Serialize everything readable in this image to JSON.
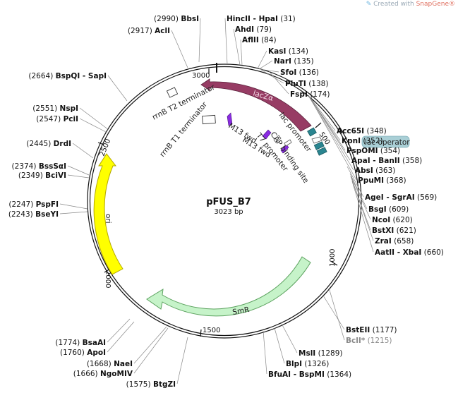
{
  "credit": {
    "prefix": "Created with",
    "brand": "SnapGene®"
  },
  "plasmid": {
    "name": "pFUS_B7",
    "size": "3023 bp"
  },
  "ticks": [
    "500",
    "1000",
    "1500",
    "2000",
    "2500",
    "3000"
  ],
  "features": {
    "lacZa": "lacZα",
    "ori": "ori",
    "smr": "SmR",
    "rrnb_t2": "rrnB T2 terminator",
    "rrnb_t1": "rrnB T1 terminator",
    "m13_fwd_1": "M13 fwd",
    "m13_fwd_2": "M13 fwd",
    "t7_promoter": "T7 promoter",
    "lac_promoter": "lac promoter",
    "cap_binding_site": "CAP binding site",
    "lac_operator": "lac operator"
  },
  "sites": [
    {
      "id": "bbsi",
      "name": "BbsI",
      "pos": "(2990)",
      "side": "left"
    },
    {
      "id": "acli",
      "name": "AclI",
      "pos": "(2917)",
      "side": "left"
    },
    {
      "id": "bspqi",
      "name": "BspQI - SapI",
      "pos": "(2664)",
      "side": "left"
    },
    {
      "id": "nspi",
      "name": "NspI",
      "pos": "(2551)",
      "side": "left"
    },
    {
      "id": "pcii",
      "name": "PciI",
      "pos": "(2547)",
      "side": "left"
    },
    {
      "id": "drdi",
      "name": "DrdI",
      "pos": "(2445)",
      "side": "left"
    },
    {
      "id": "bsssai",
      "name": "BssSαI",
      "pos": "(2374)",
      "side": "left"
    },
    {
      "id": "bcivi",
      "name": "BciVI",
      "pos": "(2349)",
      "side": "left"
    },
    {
      "id": "pspfi",
      "name": "PspFI",
      "pos": "(2247)",
      "side": "left"
    },
    {
      "id": "bseyi",
      "name": "BseYI",
      "pos": "(2243)",
      "side": "left"
    },
    {
      "id": "bsaai",
      "name": "BsaAI",
      "pos": "(1774)",
      "side": "left"
    },
    {
      "id": "apoi",
      "name": "ApoI",
      "pos": "(1760)",
      "side": "left"
    },
    {
      "id": "naei",
      "name": "NaeI",
      "pos": "(1668)",
      "side": "left"
    },
    {
      "id": "ngomiv",
      "name": "NgoMIV",
      "pos": "(1666)",
      "side": "left"
    },
    {
      "id": "btgzi",
      "name": "BtgZI",
      "pos": "(1575)",
      "side": "left"
    },
    {
      "id": "hincii",
      "name": "HincII - HpaI",
      "pos": "(31)",
      "side": "right"
    },
    {
      "id": "ahdi",
      "name": "AhdI",
      "pos": "(79)",
      "side": "right"
    },
    {
      "id": "aflii",
      "name": "AflII",
      "pos": "(84)",
      "side": "right"
    },
    {
      "id": "kasi",
      "name": "KasI",
      "pos": "(134)",
      "side": "right"
    },
    {
      "id": "nari",
      "name": "NarI",
      "pos": "(135)",
      "side": "right"
    },
    {
      "id": "sfoi",
      "name": "SfoI",
      "pos": "(136)",
      "side": "right"
    },
    {
      "id": "plutii",
      "name": "PluTI",
      "pos": "(138)",
      "side": "right"
    },
    {
      "id": "fspi",
      "name": "FspI",
      "pos": "(174)",
      "side": "right"
    },
    {
      "id": "acc65i",
      "name": "Acc65I",
      "pos": "(348)",
      "side": "right"
    },
    {
      "id": "kpni",
      "name": "KpnI",
      "pos": "(352)",
      "side": "right"
    },
    {
      "id": "pspomi",
      "name": "PspOMI",
      "pos": "(354)",
      "side": "right"
    },
    {
      "id": "apai",
      "name": "ApaI - BanII",
      "pos": "(358)",
      "side": "right"
    },
    {
      "id": "absi",
      "name": "AbsI",
      "pos": "(363)",
      "side": "right"
    },
    {
      "id": "ppumi",
      "name": "PpuMI",
      "pos": "(368)",
      "side": "right"
    },
    {
      "id": "agei",
      "name": "AgeI - SgrAI",
      "pos": "(569)",
      "side": "right"
    },
    {
      "id": "bsgi",
      "name": "BsgI",
      "pos": "(609)",
      "side": "right"
    },
    {
      "id": "ncoi",
      "name": "NcoI",
      "pos": "(620)",
      "side": "right"
    },
    {
      "id": "bstxi",
      "name": "BstXI",
      "pos": "(621)",
      "side": "right"
    },
    {
      "id": "zrai",
      "name": "ZraI",
      "pos": "(658)",
      "side": "right"
    },
    {
      "id": "aatii",
      "name": "AatII - XbaI",
      "pos": "(660)",
      "side": "right"
    },
    {
      "id": "bsteii",
      "name": "BstEII",
      "pos": "(1177)",
      "side": "right"
    },
    {
      "id": "bcli",
      "name": "BclI*",
      "pos": "(1215)",
      "side": "right",
      "gray": true
    },
    {
      "id": "msli",
      "name": "MslI",
      "pos": "(1289)",
      "side": "right"
    },
    {
      "id": "blpi",
      "name": "BlpI",
      "pos": "(1326)",
      "side": "right"
    },
    {
      "id": "bfuai",
      "name": "BfuAI - BspMI",
      "pos": "(1364)",
      "side": "right"
    }
  ]
}
